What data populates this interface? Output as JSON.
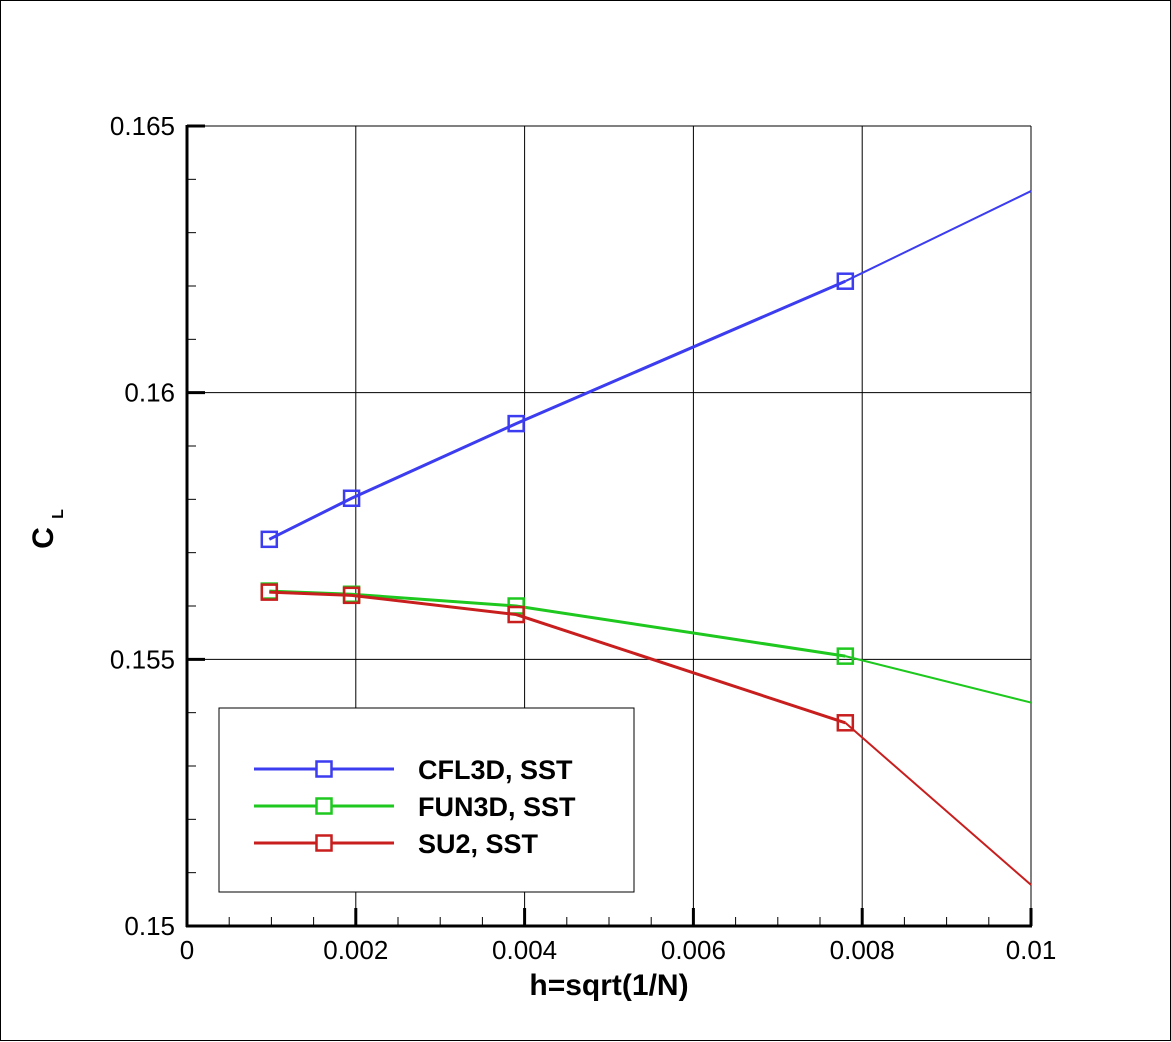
{
  "chart_data": {
    "type": "line",
    "xlabel": "h=sqrt(1/N)",
    "ylabel_main": "C",
    "ylabel_sub": "L",
    "xlim": [
      0,
      0.01
    ],
    "ylim": [
      0.15,
      0.165
    ],
    "x_ticks": [
      0,
      0.002,
      0.004,
      0.006,
      0.008,
      0.01
    ],
    "x_tick_labels": [
      "0",
      "0.002",
      "0.004",
      "0.006",
      "0.008",
      "0.01"
    ],
    "y_ticks": [
      0.15,
      0.155,
      0.16,
      0.165
    ],
    "y_tick_labels": [
      "0.15",
      "0.155",
      "0.16",
      "0.165"
    ],
    "grid": true,
    "legend_position": "bottom-left",
    "marker": "square",
    "series": [
      {
        "name": "CFL3D, SST",
        "color": "#3c3cf0",
        "points": [
          [
            0.000975,
            0.15725
          ],
          [
            0.00195,
            0.15802
          ],
          [
            0.0039,
            0.15942
          ],
          [
            0.0078,
            0.16209
          ]
        ],
        "extension": [
          [
            0.0078,
            0.16209
          ],
          [
            0.01,
            0.16378
          ]
        ]
      },
      {
        "name": "FUN3D, SST",
        "color": "#1ec81e",
        "points": [
          [
            0.000975,
            0.15628
          ],
          [
            0.00195,
            0.15622
          ],
          [
            0.0039,
            0.156
          ],
          [
            0.0078,
            0.15506
          ]
        ],
        "extension": [
          [
            0.0078,
            0.15506
          ],
          [
            0.01,
            0.15419
          ]
        ]
      },
      {
        "name": "SU2, SST",
        "color": "#c81e1e",
        "points": [
          [
            0.000975,
            0.15626
          ],
          [
            0.00195,
            0.1562
          ],
          [
            0.0039,
            0.15584
          ],
          [
            0.0078,
            0.15381
          ]
        ],
        "extension": [
          [
            0.0078,
            0.15381
          ],
          [
            0.01,
            0.15077
          ]
        ]
      }
    ]
  }
}
